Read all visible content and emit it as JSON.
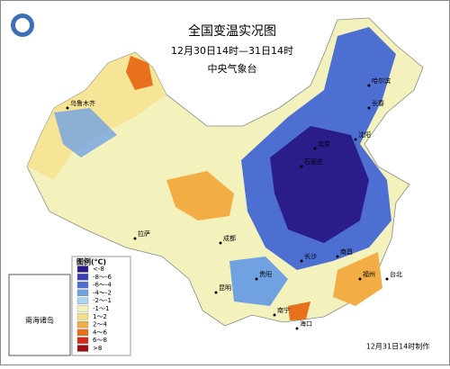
{
  "header": {
    "title": "全国变温实况图",
    "period": "12月30日14时—31日14时",
    "issuer": "中央气象台"
  },
  "legend": {
    "title": "图例(℃)",
    "items": [
      {
        "label": "<-8",
        "color": "#2a1d8a"
      },
      {
        "label": "-8～-6",
        "color": "#3b3fb6"
      },
      {
        "label": "-6～-4",
        "color": "#4e6fd2"
      },
      {
        "label": "-4～-2",
        "color": "#70a2e2"
      },
      {
        "label": "-2～-1",
        "color": "#acd6f0"
      },
      {
        "label": "-1～1",
        "color": "#f3f2bd"
      },
      {
        "label": "1～2",
        "color": "#f6df86"
      },
      {
        "label": "2～4",
        "color": "#f2ad45"
      },
      {
        "label": "4～6",
        "color": "#e8711e"
      },
      {
        "label": "6～8",
        "color": "#d6271b"
      },
      {
        "label": ">8",
        "color": "#9e0c14"
      }
    ]
  },
  "inset": {
    "label": "南海诸岛"
  },
  "footer": {
    "made": "12月31日14时制作"
  },
  "cities": [
    "乌鲁木齐",
    "哈尔滨",
    "长春",
    "沈阳",
    "北京",
    "石家庄",
    "拉萨",
    "成都",
    "昆明",
    "贵阳",
    "长沙",
    "南昌",
    "南宁",
    "海口",
    "台北",
    "福州"
  ]
}
